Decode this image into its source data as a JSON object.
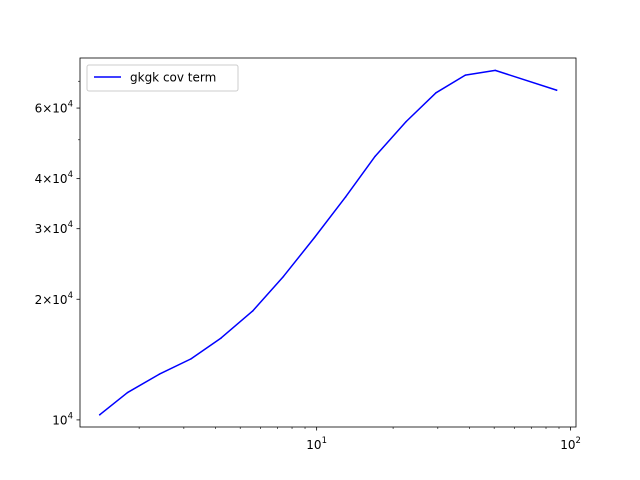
{
  "chart_data": {
    "type": "line",
    "xscale": "log",
    "yscale": "log",
    "xlim": [
      1.17,
      105
    ],
    "ylim": [
      9600,
      80000
    ],
    "grid": false,
    "legend_position": "top-left",
    "series": [
      {
        "name": "gkgk cov term",
        "color": "#0000ff",
        "x": [
          1.4,
          1.8,
          2.4,
          3.2,
          4.2,
          5.6,
          7.4,
          9.8,
          13.0,
          17.0,
          22.5,
          29.5,
          38.5,
          50.5,
          88.0
        ],
        "y": [
          10300,
          11700,
          13000,
          14200,
          16000,
          18700,
          22800,
          28500,
          36000,
          45500,
          55500,
          65500,
          72500,
          74500,
          66500
        ]
      }
    ],
    "x_ticks": [
      {
        "value": 10,
        "base": "10",
        "exp": "1"
      },
      {
        "value": 100,
        "base": "10",
        "exp": "2"
      }
    ],
    "y_ticks": [
      {
        "value": 10000,
        "mant": "",
        "base": "10",
        "exp": "4"
      },
      {
        "value": 20000,
        "mant": "2×",
        "base": "10",
        "exp": "4"
      },
      {
        "value": 30000,
        "mant": "3×",
        "base": "10",
        "exp": "4"
      },
      {
        "value": 40000,
        "mant": "4×",
        "base": "10",
        "exp": "4"
      },
      {
        "value": 60000,
        "mant": "6×",
        "base": "10",
        "exp": "4"
      }
    ],
    "x_minor_ticks": [
      2,
      3,
      4,
      5,
      6,
      7,
      8,
      9,
      20,
      30,
      40,
      50,
      60,
      70,
      80,
      90
    ],
    "y_minor_ticks": [
      50000,
      70000
    ]
  }
}
